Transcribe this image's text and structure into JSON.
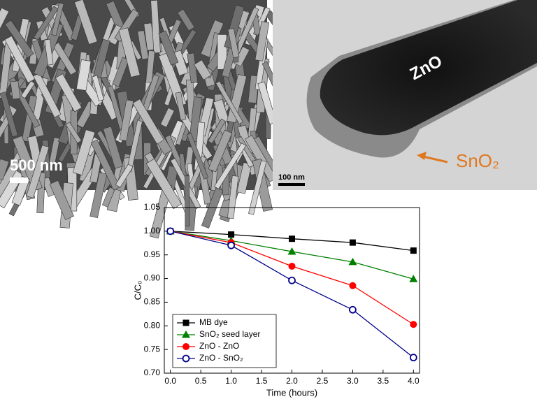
{
  "images": {
    "sem_scale": "500  nm",
    "tem_scale": "100 nm",
    "tem_core_label": "ZnO",
    "tem_shell_label": "SnO₂"
  },
  "chart_data": {
    "type": "line",
    "x_label": "Time (hours)",
    "y_label": "C/C₀",
    "x": [
      0,
      1,
      2,
      3,
      4
    ],
    "xlim": [
      -0.1,
      4.1
    ],
    "xticks": [
      {
        "value": 0,
        "label": "0.0"
      },
      {
        "value": 0.5,
        "label": "0.5"
      },
      {
        "value": 1,
        "label": "1.0"
      },
      {
        "value": 1.5,
        "label": "1.5"
      },
      {
        "value": 2,
        "label": "2.0"
      },
      {
        "value": 2.5,
        "label": "2.5"
      },
      {
        "value": 3,
        "label": "3.0"
      },
      {
        "value": 3.5,
        "label": "3.5"
      },
      {
        "value": 4,
        "label": "4.0"
      }
    ],
    "ylim": [
      0.7,
      1.05
    ],
    "yticks": [
      {
        "value": 0.7,
        "label": "0.70"
      },
      {
        "value": 0.75,
        "label": "0.75"
      },
      {
        "value": 0.8,
        "label": "0.80"
      },
      {
        "value": 0.85,
        "label": "0.85"
      },
      {
        "value": 0.9,
        "label": "0.90"
      },
      {
        "value": 0.95,
        "label": "0.95"
      },
      {
        "value": 1,
        "label": "1.00"
      },
      {
        "value": 1.05,
        "label": "1.05"
      }
    ],
    "grid": false,
    "legend": "lower left",
    "series": [
      {
        "name": "MB dye",
        "color": "#000000",
        "marker": "square",
        "values": [
          1.0,
          0.993,
          0.984,
          0.976,
          0.959
        ]
      },
      {
        "name": "SnO₂ seed layer",
        "color": "#008000",
        "marker": "triangle",
        "values": [
          1.0,
          0.98,
          0.957,
          0.935,
          0.899
        ]
      },
      {
        "name": "ZnO - ZnO",
        "color": "#ff0000",
        "marker": "circle",
        "values": [
          1.0,
          0.976,
          0.926,
          0.885,
          0.803
        ]
      },
      {
        "name": "ZnO - SnO₂",
        "color": "#00008b",
        "marker": "open-circle",
        "values": [
          1.0,
          0.97,
          0.896,
          0.834,
          0.733
        ]
      }
    ]
  }
}
